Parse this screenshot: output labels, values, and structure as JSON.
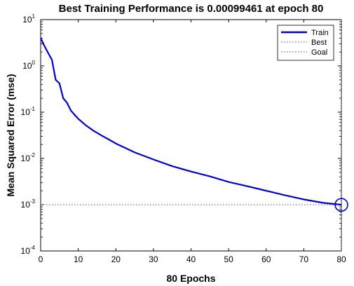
{
  "chart_data": {
    "type": "line",
    "title": "Best Training Performance is 0.00099461 at epoch 80",
    "xlabel": "80 Epochs",
    "ylabel": "Mean Squared Error  (mse)",
    "xlim": [
      0,
      80
    ],
    "ylim": [
      0.0001,
      10
    ],
    "yscale": "log",
    "grid": false,
    "legend_position": "top-right",
    "x_ticks": [
      0,
      10,
      20,
      30,
      40,
      50,
      60,
      70,
      80
    ],
    "y_ticks": [
      {
        "value": 0.0001,
        "base": "10",
        "exp": "-4"
      },
      {
        "value": 0.001,
        "base": "10",
        "exp": "-3"
      },
      {
        "value": 0.01,
        "base": "10",
        "exp": "-2"
      },
      {
        "value": 0.1,
        "base": "10",
        "exp": "-1"
      },
      {
        "value": 1,
        "base": "10",
        "exp": "0"
      },
      {
        "value": 10,
        "base": "10",
        "exp": "1"
      }
    ],
    "legend": [
      {
        "name": "Train",
        "style": "solid",
        "color": "#0000cc"
      },
      {
        "name": "Best",
        "style": "dotted",
        "color": "#555555"
      },
      {
        "name": "Goal",
        "style": "dotted",
        "color": "#555555"
      }
    ],
    "series": [
      {
        "name": "Train",
        "color": "#0000cc",
        "x": [
          0,
          1,
          2,
          3,
          4,
          5,
          6,
          7,
          8,
          9,
          10,
          12,
          14,
          16,
          18,
          20,
          25,
          30,
          35,
          40,
          45,
          50,
          55,
          60,
          65,
          70,
          75,
          80
        ],
        "y": [
          4.0,
          2.7,
          1.9,
          1.35,
          0.5,
          0.42,
          0.2,
          0.16,
          0.11,
          0.088,
          0.072,
          0.052,
          0.04,
          0.032,
          0.026,
          0.021,
          0.0135,
          0.0095,
          0.0068,
          0.0052,
          0.0041,
          0.0031,
          0.0025,
          0.002,
          0.0016,
          0.0013,
          0.0011,
          0.00099461
        ]
      }
    ],
    "best": {
      "epoch": 80,
      "value": 0.00099461,
      "color": "#555555"
    },
    "goal": {
      "value": 0.001,
      "color": "#555555"
    },
    "marker_color": "#0000cc"
  }
}
